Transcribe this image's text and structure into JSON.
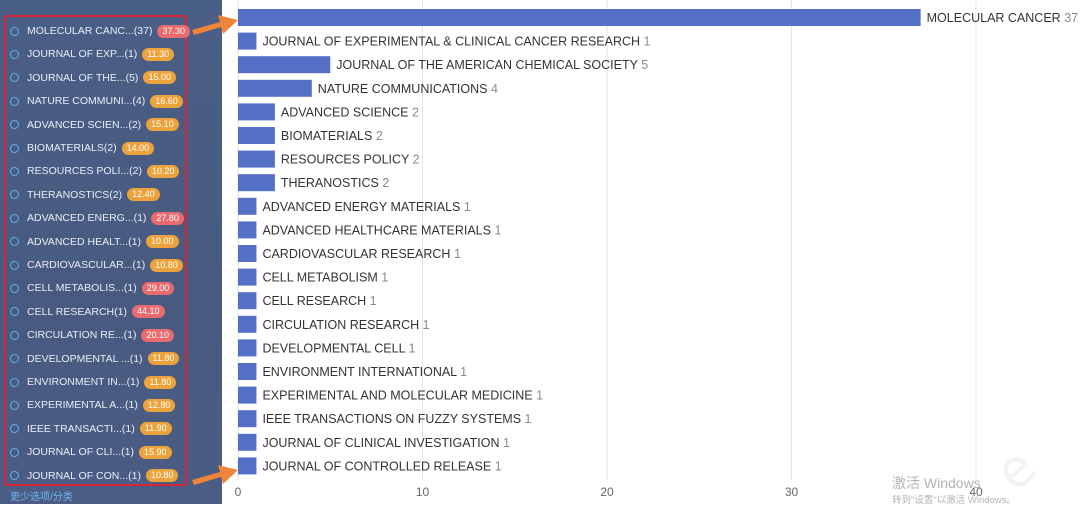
{
  "sidebar": {
    "items": [
      {
        "label": "MOLECULAR CANC...(37)",
        "badge": "37.30",
        "badge_color": "red"
      },
      {
        "label": "JOURNAL OF EXP...(1)",
        "badge": "11.30",
        "badge_color": "orange"
      },
      {
        "label": "JOURNAL OF THE...(5)",
        "badge": "15.00",
        "badge_color": "orange"
      },
      {
        "label": "NATURE COMMUNI...(4)",
        "badge": "16.60",
        "badge_color": "orange"
      },
      {
        "label": "ADVANCED SCIEN...(2)",
        "badge": "15.10",
        "badge_color": "orange"
      },
      {
        "label": "BIOMATERIALS(2)",
        "badge": "14.00",
        "badge_color": "orange"
      },
      {
        "label": "RESOURCES POLI...(2)",
        "badge": "10.20",
        "badge_color": "orange"
      },
      {
        "label": "THERANOSTICS(2)",
        "badge": "12.40",
        "badge_color": "orange"
      },
      {
        "label": "ADVANCED ENERG...(1)",
        "badge": "27.80",
        "badge_color": "red"
      },
      {
        "label": "ADVANCED HEALT...(1)",
        "badge": "10.00",
        "badge_color": "orange"
      },
      {
        "label": "CARDIOVASCULAR...(1)",
        "badge": "10.80",
        "badge_color": "orange"
      },
      {
        "label": "CELL METABOLIS...(1)",
        "badge": "29.00",
        "badge_color": "red"
      },
      {
        "label": "CELL RESEARCH(1)",
        "badge": "44.10",
        "badge_color": "red"
      },
      {
        "label": "CIRCULATION RE...(1)",
        "badge": "20.10",
        "badge_color": "red"
      },
      {
        "label": "DEVELOPMENTAL ...(1)",
        "badge": "11.80",
        "badge_color": "orange"
      },
      {
        "label": "ENVIRONMENT IN...(1)",
        "badge": "11.80",
        "badge_color": "orange"
      },
      {
        "label": "EXPERIMENTAL A...(1)",
        "badge": "12.80",
        "badge_color": "orange"
      },
      {
        "label": "IEEE TRANSACTI...(1)",
        "badge": "11.90",
        "badge_color": "orange"
      },
      {
        "label": "JOURNAL OF CLI...(1)",
        "badge": "15.90",
        "badge_color": "orange"
      },
      {
        "label": "JOURNAL OF CON...(1)",
        "badge": "10.80",
        "badge_color": "orange"
      }
    ],
    "more_link": "更少选项/分类"
  },
  "colors": {
    "bar": "#5470c6",
    "highlight_border": "#d9253a",
    "arrow": "#f0853a",
    "badge_orange": "#eda33c",
    "badge_red": "#e96a6f"
  },
  "icons": [
    "radio-circle-icon",
    "arrow-right-icon"
  ],
  "chart_data": {
    "type": "bar",
    "orientation": "horizontal",
    "categories": [
      "MOLECULAR CANCER",
      "JOURNAL OF EXPERIMENTAL & CLINICAL CANCER RESEARCH",
      "JOURNAL OF THE AMERICAN CHEMICAL SOCIETY",
      "NATURE COMMUNICATIONS",
      "ADVANCED SCIENCE",
      "BIOMATERIALS",
      "RESOURCES POLICY",
      "THERANOSTICS",
      "ADVANCED ENERGY MATERIALS",
      "ADVANCED HEALTHCARE MATERIALS",
      "CARDIOVASCULAR RESEARCH",
      "CELL METABOLISM",
      "CELL RESEARCH",
      "CIRCULATION RESEARCH",
      "DEVELOPMENTAL CELL",
      "ENVIRONMENT INTERNATIONAL",
      "EXPERIMENTAL AND MOLECULAR MEDICINE",
      "IEEE TRANSACTIONS ON FUZZY SYSTEMS",
      "JOURNAL OF CLINICAL INVESTIGATION",
      "JOURNAL OF CONTROLLED RELEASE"
    ],
    "values": [
      37,
      1,
      5,
      4,
      2,
      2,
      2,
      2,
      1,
      1,
      1,
      1,
      1,
      1,
      1,
      1,
      1,
      1,
      1,
      1
    ],
    "xlim": [
      0,
      45
    ],
    "xticks": [
      0,
      10,
      20,
      30,
      40
    ],
    "grid": true,
    "legend": "none"
  },
  "watermark": {
    "title": "激活 Windows",
    "subtitle": "转到\"设置\"以激活 Windows。"
  }
}
